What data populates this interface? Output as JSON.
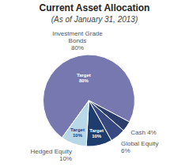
{
  "chart_data": {
    "type": "pie",
    "title": "Current Asset Allocation",
    "subtitle": "(As of January 31, 2013)",
    "categories": [
      "Investment Grade\nBonds\n80%",
      "Cash 4%",
      "Global Equity\n6%",
      null,
      "Hedged Equity\n10%"
    ],
    "values": [
      80,
      4,
      6,
      10,
      10
    ],
    "value_labels": [
      "Target\n80%",
      null,
      null,
      "Target\n10%",
      "Target\n10%"
    ],
    "data_labels": true,
    "colors": [
      "#7878B0",
      "#2B3D6B",
      "#374980",
      "#1E3D6E",
      "#B8D8E8"
    ]
  }
}
